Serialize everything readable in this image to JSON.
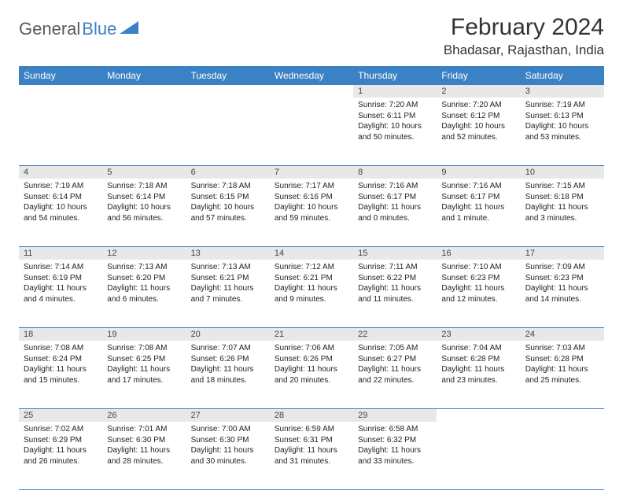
{
  "logo": {
    "part1": "General",
    "part2": "Blue"
  },
  "title": "February 2024",
  "location": "Bhadasar, Rajasthan, India",
  "colors": {
    "header_bg": "#3b82c4",
    "header_text": "#ffffff",
    "daynum_bg": "#e8e8e8",
    "border": "#4a7db5",
    "logo_gray": "#5a5a5a",
    "logo_blue": "#3b82c4"
  },
  "daysOfWeek": [
    "Sunday",
    "Monday",
    "Tuesday",
    "Wednesday",
    "Thursday",
    "Friday",
    "Saturday"
  ],
  "weeks": [
    [
      {
        "n": "",
        "sr": "",
        "ss": "",
        "dl": ""
      },
      {
        "n": "",
        "sr": "",
        "ss": "",
        "dl": ""
      },
      {
        "n": "",
        "sr": "",
        "ss": "",
        "dl": ""
      },
      {
        "n": "",
        "sr": "",
        "ss": "",
        "dl": ""
      },
      {
        "n": "1",
        "sr": "7:20 AM",
        "ss": "6:11 PM",
        "dl": "10 hours and 50 minutes."
      },
      {
        "n": "2",
        "sr": "7:20 AM",
        "ss": "6:12 PM",
        "dl": "10 hours and 52 minutes."
      },
      {
        "n": "3",
        "sr": "7:19 AM",
        "ss": "6:13 PM",
        "dl": "10 hours and 53 minutes."
      }
    ],
    [
      {
        "n": "4",
        "sr": "7:19 AM",
        "ss": "6:14 PM",
        "dl": "10 hours and 54 minutes."
      },
      {
        "n": "5",
        "sr": "7:18 AM",
        "ss": "6:14 PM",
        "dl": "10 hours and 56 minutes."
      },
      {
        "n": "6",
        "sr": "7:18 AM",
        "ss": "6:15 PM",
        "dl": "10 hours and 57 minutes."
      },
      {
        "n": "7",
        "sr": "7:17 AM",
        "ss": "6:16 PM",
        "dl": "10 hours and 59 minutes."
      },
      {
        "n": "8",
        "sr": "7:16 AM",
        "ss": "6:17 PM",
        "dl": "11 hours and 0 minutes."
      },
      {
        "n": "9",
        "sr": "7:16 AM",
        "ss": "6:17 PM",
        "dl": "11 hours and 1 minute."
      },
      {
        "n": "10",
        "sr": "7:15 AM",
        "ss": "6:18 PM",
        "dl": "11 hours and 3 minutes."
      }
    ],
    [
      {
        "n": "11",
        "sr": "7:14 AM",
        "ss": "6:19 PM",
        "dl": "11 hours and 4 minutes."
      },
      {
        "n": "12",
        "sr": "7:13 AM",
        "ss": "6:20 PM",
        "dl": "11 hours and 6 minutes."
      },
      {
        "n": "13",
        "sr": "7:13 AM",
        "ss": "6:21 PM",
        "dl": "11 hours and 7 minutes."
      },
      {
        "n": "14",
        "sr": "7:12 AM",
        "ss": "6:21 PM",
        "dl": "11 hours and 9 minutes."
      },
      {
        "n": "15",
        "sr": "7:11 AM",
        "ss": "6:22 PM",
        "dl": "11 hours and 11 minutes."
      },
      {
        "n": "16",
        "sr": "7:10 AM",
        "ss": "6:23 PM",
        "dl": "11 hours and 12 minutes."
      },
      {
        "n": "17",
        "sr": "7:09 AM",
        "ss": "6:23 PM",
        "dl": "11 hours and 14 minutes."
      }
    ],
    [
      {
        "n": "18",
        "sr": "7:08 AM",
        "ss": "6:24 PM",
        "dl": "11 hours and 15 minutes."
      },
      {
        "n": "19",
        "sr": "7:08 AM",
        "ss": "6:25 PM",
        "dl": "11 hours and 17 minutes."
      },
      {
        "n": "20",
        "sr": "7:07 AM",
        "ss": "6:26 PM",
        "dl": "11 hours and 18 minutes."
      },
      {
        "n": "21",
        "sr": "7:06 AM",
        "ss": "6:26 PM",
        "dl": "11 hours and 20 minutes."
      },
      {
        "n": "22",
        "sr": "7:05 AM",
        "ss": "6:27 PM",
        "dl": "11 hours and 22 minutes."
      },
      {
        "n": "23",
        "sr": "7:04 AM",
        "ss": "6:28 PM",
        "dl": "11 hours and 23 minutes."
      },
      {
        "n": "24",
        "sr": "7:03 AM",
        "ss": "6:28 PM",
        "dl": "11 hours and 25 minutes."
      }
    ],
    [
      {
        "n": "25",
        "sr": "7:02 AM",
        "ss": "6:29 PM",
        "dl": "11 hours and 26 minutes."
      },
      {
        "n": "26",
        "sr": "7:01 AM",
        "ss": "6:30 PM",
        "dl": "11 hours and 28 minutes."
      },
      {
        "n": "27",
        "sr": "7:00 AM",
        "ss": "6:30 PM",
        "dl": "11 hours and 30 minutes."
      },
      {
        "n": "28",
        "sr": "6:59 AM",
        "ss": "6:31 PM",
        "dl": "11 hours and 31 minutes."
      },
      {
        "n": "29",
        "sr": "6:58 AM",
        "ss": "6:32 PM",
        "dl": "11 hours and 33 minutes."
      },
      {
        "n": "",
        "sr": "",
        "ss": "",
        "dl": ""
      },
      {
        "n": "",
        "sr": "",
        "ss": "",
        "dl": ""
      }
    ]
  ],
  "labels": {
    "sunrise": "Sunrise:",
    "sunset": "Sunset:",
    "daylight": "Daylight:"
  }
}
